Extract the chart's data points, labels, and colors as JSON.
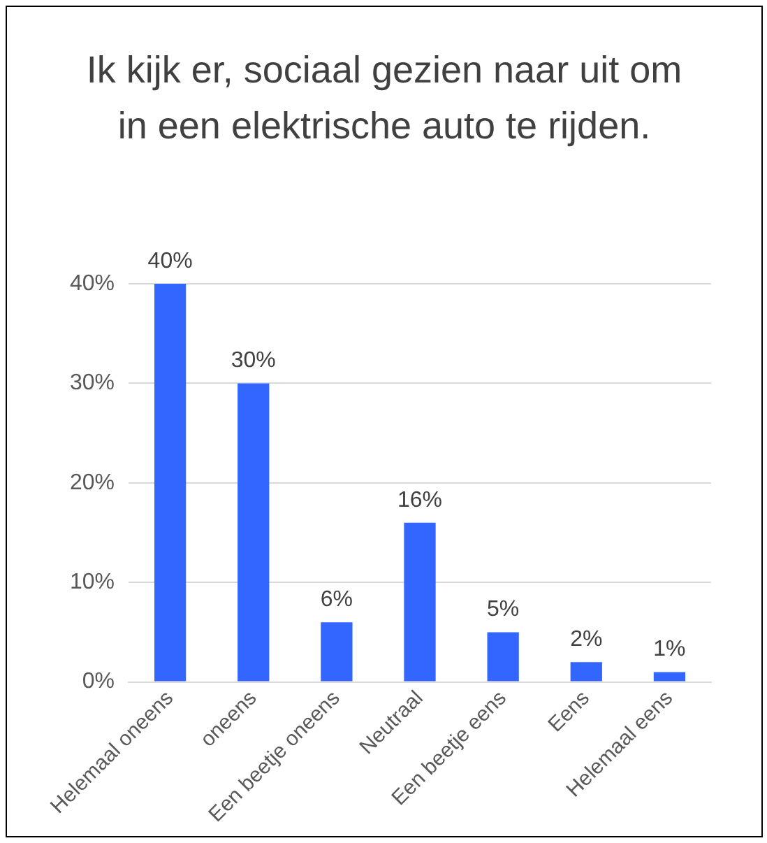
{
  "chart_data": {
    "type": "bar",
    "title": "Ik kijk er, sociaal gezien naar uit om in een elektrische auto te rijden.",
    "categories": [
      "Helemaal oneens",
      "oneens",
      "Een beetje oneens",
      "Neutraal",
      "Een beetje eens",
      "Eens",
      "Helemaal eens"
    ],
    "values": [
      40,
      30,
      6,
      16,
      5,
      2,
      1
    ],
    "value_labels": [
      "40%",
      "30%",
      "6%",
      "16%",
      "5%",
      "2%",
      "1%"
    ],
    "color": "#3366ff",
    "ylim": [
      0,
      40
    ],
    "yticks": [
      {
        "value": 0,
        "label": "0%"
      },
      {
        "value": 10,
        "label": "10%"
      },
      {
        "value": 20,
        "label": "20%"
      },
      {
        "value": 30,
        "label": "30%"
      },
      {
        "value": 40,
        "label": "40%"
      }
    ],
    "grid": "y",
    "legend": false
  }
}
